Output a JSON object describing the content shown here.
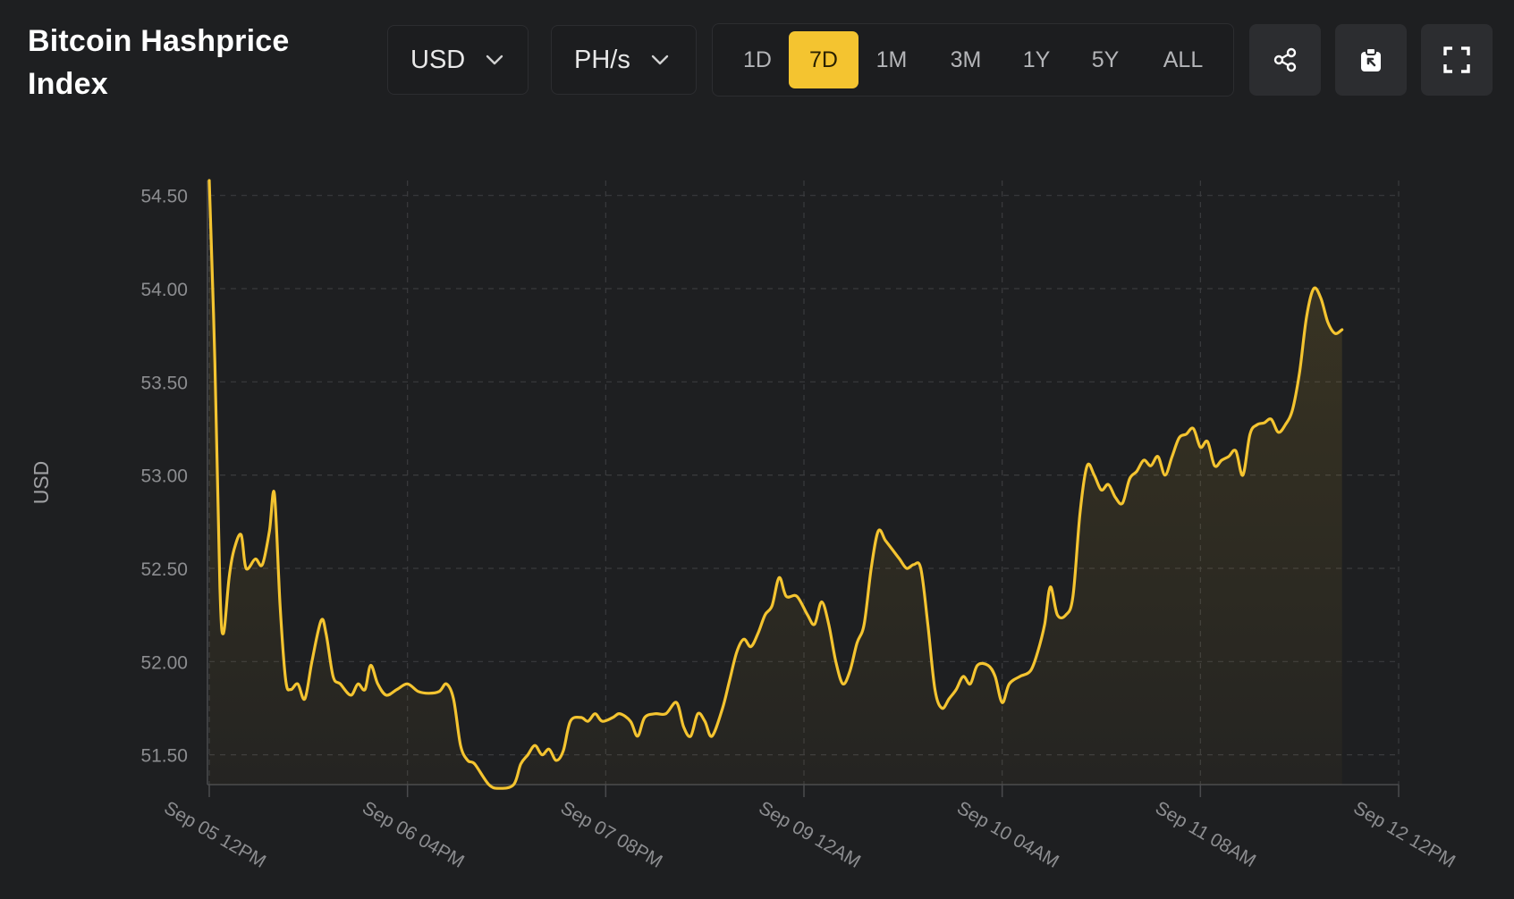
{
  "header": {
    "title": "Bitcoin Hashprice Index",
    "currency_select": "USD",
    "unit_select": "PH/s",
    "ranges": [
      "1D",
      "7D",
      "1M",
      "3M",
      "1Y",
      "5Y",
      "ALL"
    ],
    "active_range": "7D"
  },
  "toolbar": {
    "share_icon": "share-icon",
    "copy_icon": "clipboard-icon",
    "fullscreen_icon": "fullscreen-icon"
  },
  "colors": {
    "background": "#1e1f21",
    "accent": "#f4c430",
    "line": "#f4c430",
    "grid": "#3a3b3e",
    "axis_text": "#8c8d90"
  },
  "chart_data": {
    "type": "area",
    "ylabel": "USD",
    "xlabel": "",
    "ylim": [
      51.34,
      54.58
    ],
    "y_ticks": [
      "54.50",
      "54.00",
      "53.50",
      "53.00",
      "52.50",
      "52.00",
      "51.50"
    ],
    "y_tick_values": [
      54.5,
      54.0,
      53.5,
      53.0,
      52.5,
      52.0,
      51.5
    ],
    "x_ticks": [
      "Sep 05 12PM",
      "Sep 06 04PM",
      "Sep 07 08PM",
      "Sep 09 12AM",
      "Sep 10 04AM",
      "Sep 11 08AM",
      "Sep 12 12PM"
    ],
    "x_tick_hours": [
      0,
      28,
      56,
      84,
      112,
      140,
      168
    ],
    "x_unit": "hours since Sep 05 12PM",
    "grid": true,
    "series": [
      {
        "points": [
          [
            0,
            54.58
          ],
          [
            0.8,
            53.6
          ],
          [
            1.5,
            52.4
          ],
          [
            2.0,
            52.15
          ],
          [
            2.8,
            52.45
          ],
          [
            3.5,
            52.6
          ],
          [
            4.5,
            52.68
          ],
          [
            5.2,
            52.5
          ],
          [
            6.5,
            52.55
          ],
          [
            7.5,
            52.52
          ],
          [
            8.5,
            52.7
          ],
          [
            9.2,
            52.9
          ],
          [
            10.0,
            52.3
          ],
          [
            10.8,
            51.9
          ],
          [
            11.5,
            51.85
          ],
          [
            12.5,
            51.88
          ],
          [
            13.5,
            51.8
          ],
          [
            14.5,
            52.0
          ],
          [
            15.8,
            52.22
          ],
          [
            16.5,
            52.15
          ],
          [
            17.5,
            51.92
          ],
          [
            18.5,
            51.88
          ],
          [
            20.0,
            51.82
          ],
          [
            21.0,
            51.88
          ],
          [
            22.0,
            51.85
          ],
          [
            22.8,
            51.98
          ],
          [
            23.8,
            51.88
          ],
          [
            25.0,
            51.82
          ],
          [
            26.5,
            51.85
          ],
          [
            28.0,
            51.88
          ],
          [
            29.5,
            51.84
          ],
          [
            31.0,
            51.83
          ],
          [
            32.5,
            51.84
          ],
          [
            33.5,
            51.88
          ],
          [
            34.5,
            51.8
          ],
          [
            35.5,
            51.55
          ],
          [
            36.5,
            51.47
          ],
          [
            37.5,
            51.45
          ],
          [
            39.5,
            51.34
          ],
          [
            41.0,
            51.32
          ],
          [
            43.0,
            51.34
          ],
          [
            44.0,
            51.45
          ],
          [
            45.0,
            51.5
          ],
          [
            46.0,
            51.55
          ],
          [
            47.0,
            51.5
          ],
          [
            48.0,
            51.53
          ],
          [
            49.0,
            51.47
          ],
          [
            50.0,
            51.52
          ],
          [
            51.0,
            51.68
          ],
          [
            52.5,
            51.7
          ],
          [
            53.5,
            51.68
          ],
          [
            54.5,
            51.72
          ],
          [
            55.5,
            51.68
          ],
          [
            57.0,
            51.7
          ],
          [
            58.0,
            51.72
          ],
          [
            59.5,
            51.68
          ],
          [
            60.5,
            51.6
          ],
          [
            61.5,
            51.7
          ],
          [
            63.0,
            51.72
          ],
          [
            64.5,
            51.72
          ],
          [
            66.0,
            51.78
          ],
          [
            67.0,
            51.65
          ],
          [
            68.0,
            51.6
          ],
          [
            69.0,
            51.72
          ],
          [
            70.0,
            51.68
          ],
          [
            71.0,
            51.6
          ],
          [
            72.5,
            51.75
          ],
          [
            73.5,
            51.9
          ],
          [
            74.5,
            52.05
          ],
          [
            75.5,
            52.12
          ],
          [
            76.5,
            52.08
          ],
          [
            77.5,
            52.15
          ],
          [
            78.5,
            52.25
          ],
          [
            79.5,
            52.3
          ],
          [
            80.5,
            52.45
          ],
          [
            81.5,
            52.35
          ],
          [
            83.0,
            52.35
          ],
          [
            84.5,
            52.25
          ],
          [
            85.5,
            52.2
          ],
          [
            86.5,
            52.32
          ],
          [
            87.5,
            52.2
          ],
          [
            88.5,
            52.0
          ],
          [
            89.5,
            51.88
          ],
          [
            90.5,
            51.95
          ],
          [
            91.5,
            52.1
          ],
          [
            92.5,
            52.2
          ],
          [
            93.5,
            52.5
          ],
          [
            94.5,
            52.7
          ],
          [
            95.5,
            52.65
          ],
          [
            96.5,
            52.6
          ],
          [
            97.5,
            52.55
          ],
          [
            98.5,
            52.5
          ],
          [
            99.5,
            52.52
          ],
          [
            100.5,
            52.5
          ],
          [
            101.5,
            52.2
          ],
          [
            102.5,
            51.85
          ],
          [
            103.5,
            51.75
          ],
          [
            104.5,
            51.8
          ],
          [
            105.5,
            51.85
          ],
          [
            106.5,
            51.92
          ],
          [
            107.5,
            51.88
          ],
          [
            108.5,
            51.98
          ],
          [
            110.0,
            51.98
          ],
          [
            111.0,
            51.92
          ],
          [
            112.0,
            51.78
          ],
          [
            113.0,
            51.88
          ],
          [
            114.5,
            51.92
          ],
          [
            116.0,
            51.95
          ],
          [
            117.0,
            52.05
          ],
          [
            118.0,
            52.2
          ],
          [
            118.8,
            52.4
          ],
          [
            119.8,
            52.25
          ],
          [
            121.0,
            52.25
          ],
          [
            122.0,
            52.35
          ],
          [
            123.0,
            52.8
          ],
          [
            124.0,
            53.05
          ],
          [
            125.0,
            53.0
          ],
          [
            126.0,
            52.92
          ],
          [
            127.0,
            52.95
          ],
          [
            128.0,
            52.88
          ],
          [
            129.0,
            52.85
          ],
          [
            130.0,
            52.98
          ],
          [
            131.0,
            53.02
          ],
          [
            132.0,
            53.08
          ],
          [
            133.0,
            53.05
          ],
          [
            134.0,
            53.1
          ],
          [
            135.0,
            53.0
          ],
          [
            136.0,
            53.1
          ],
          [
            137.0,
            53.2
          ],
          [
            138.0,
            53.22
          ],
          [
            139.0,
            53.25
          ],
          [
            140.0,
            53.15
          ],
          [
            141.0,
            53.18
          ],
          [
            142.0,
            53.05
          ],
          [
            143.0,
            53.08
          ],
          [
            144.0,
            53.1
          ],
          [
            145.0,
            53.13
          ],
          [
            146.0,
            53.0
          ],
          [
            147.0,
            53.22
          ],
          [
            148.0,
            53.27
          ],
          [
            149.0,
            53.28
          ],
          [
            150.0,
            53.3
          ],
          [
            151.0,
            53.23
          ],
          [
            152.0,
            53.27
          ],
          [
            153.0,
            53.35
          ],
          [
            154.0,
            53.55
          ],
          [
            155.0,
            53.85
          ],
          [
            156.0,
            54.0
          ],
          [
            157.0,
            53.95
          ],
          [
            158.0,
            53.82
          ],
          [
            159.0,
            53.76
          ],
          [
            160.0,
            53.78
          ]
        ]
      }
    ]
  }
}
